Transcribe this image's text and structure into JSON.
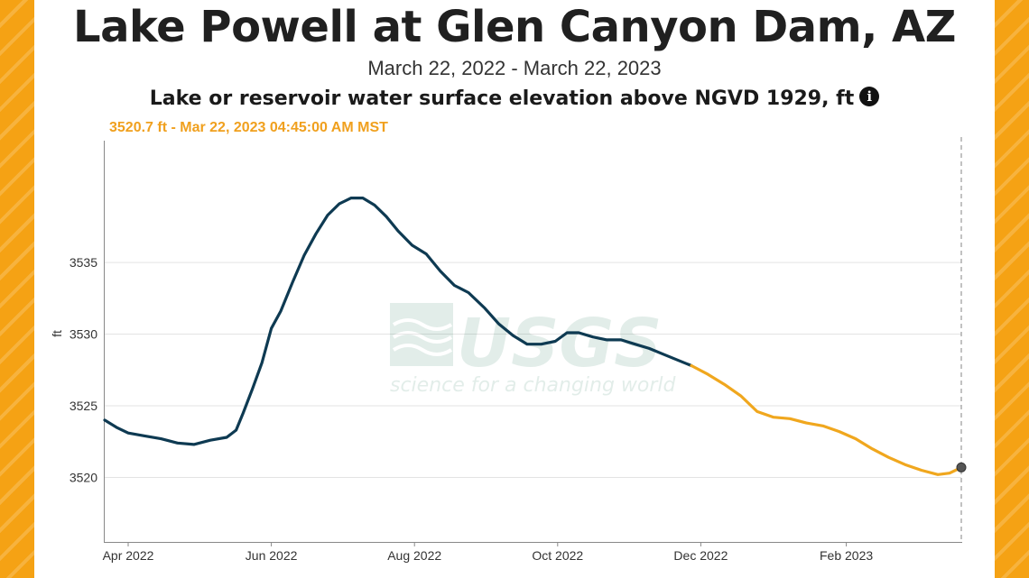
{
  "title": "Lake Powell at Glen Canyon Dam, AZ",
  "subtitle": "March 22, 2022 - March 22, 2023",
  "parameter": "Lake or reservoir water surface elevation above NGVD 1929, ft",
  "info_icon_glyph": "i",
  "readout": "3520.7 ft - Mar 22, 2023 04:45:00 AM MST",
  "watermark": {
    "logo": "USGS",
    "tagline": "science for a changing world"
  },
  "colors": {
    "stripe": "#f5a214",
    "approved": "#0e3a52",
    "provisional": "#f0a71e",
    "marker": "#555555"
  },
  "chart_data": {
    "type": "line",
    "title": "Lake Powell at Glen Canyon Dam, AZ",
    "xlabel": "",
    "ylabel": "ft",
    "ylim": [
      3515.5,
      3543.5
    ],
    "yticks": [
      3520,
      3525,
      3530,
      3535
    ],
    "ytick_labels": [
      "3520",
      "3525",
      "3530",
      "3535"
    ],
    "xticks": [
      "2022-04-01",
      "2022-06-01",
      "2022-08-01",
      "2022-10-01",
      "2022-12-01",
      "2023-02-01"
    ],
    "xtick_labels": [
      "Apr 2022",
      "Jun 2022",
      "Aug 2022",
      "Oct 2022",
      "Dec 2022",
      "Feb 2023"
    ],
    "xlim": [
      "2022-03-22",
      "2023-03-22"
    ],
    "grid": "horizontal",
    "legend": "none",
    "marker_point": {
      "x": "2023-03-22",
      "y": 3520.7
    },
    "series": [
      {
        "x": [
          "2022-03-22",
          "2022-03-27",
          "2022-04-01",
          "2022-04-08",
          "2022-04-15",
          "2022-04-22",
          "2022-04-29",
          "2022-05-06",
          "2022-05-13",
          "2022-05-17",
          "2022-05-20",
          "2022-05-24",
          "2022-05-28",
          "2022-06-01",
          "2022-06-05",
          "2022-06-10",
          "2022-06-15",
          "2022-06-20",
          "2022-06-25",
          "2022-06-30",
          "2022-07-05",
          "2022-07-10",
          "2022-07-15",
          "2022-07-20",
          "2022-07-25",
          "2022-07-31",
          "2022-08-06",
          "2022-08-12",
          "2022-08-18",
          "2022-08-24",
          "2022-08-31",
          "2022-09-06",
          "2022-09-12",
          "2022-09-18",
          "2022-09-24",
          "2022-09-30",
          "2022-10-05",
          "2022-10-10",
          "2022-10-16",
          "2022-10-22",
          "2022-10-28",
          "2022-11-03",
          "2022-11-09",
          "2022-11-15",
          "2022-11-21",
          "2022-11-27"
        ],
        "values": [
          3524.0,
          3523.5,
          3523.1,
          3522.9,
          3522.7,
          3522.4,
          3522.3,
          3522.6,
          3522.8,
          3523.3,
          3524.5,
          3526.2,
          3528.0,
          3530.4,
          3531.6,
          3533.6,
          3535.5,
          3537.0,
          3538.3,
          3539.1,
          3539.5,
          3539.5,
          3539.0,
          3538.2,
          3537.2,
          3536.2,
          3535.6,
          3534.4,
          3533.4,
          3532.9,
          3531.8,
          3530.7,
          3529.9,
          3529.3,
          3529.3,
          3529.5,
          3530.1,
          3530.1,
          3529.8,
          3529.6,
          3529.6,
          3529.3,
          3529.0,
          3528.6,
          3528.2,
          3527.8
        ],
        "status": "approved"
      },
      {
        "x": [
          "2022-11-27",
          "2022-12-04",
          "2022-12-11",
          "2022-12-18",
          "2022-12-25",
          "2023-01-01",
          "2023-01-08",
          "2023-01-15",
          "2023-01-22",
          "2023-01-29",
          "2023-02-05",
          "2023-02-12",
          "2023-02-19",
          "2023-02-26",
          "2023-03-05",
          "2023-03-12",
          "2023-03-17",
          "2023-03-22"
        ],
        "values": [
          3527.8,
          3527.2,
          3526.5,
          3525.7,
          3524.6,
          3524.2,
          3524.1,
          3523.8,
          3523.6,
          3523.2,
          3522.7,
          3522.0,
          3521.4,
          3520.9,
          3520.5,
          3520.2,
          3520.3,
          3520.7
        ],
        "status": "provisional"
      }
    ]
  }
}
